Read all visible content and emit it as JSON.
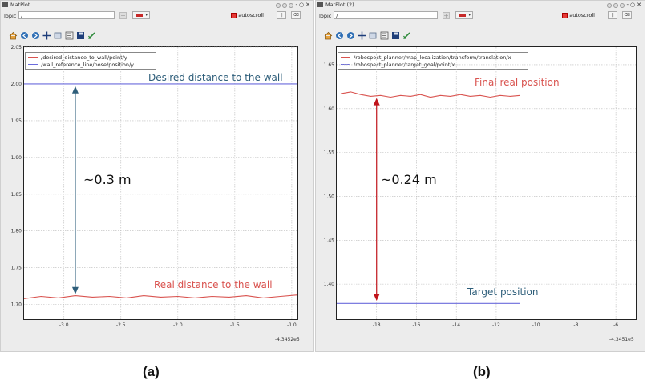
{
  "left": {
    "title": "MatPlot",
    "topic_label": "Topic",
    "topic_value": "/",
    "autoscroll_label": "autoscroll",
    "legend": [
      "/desired_distance_to_wall/point/y",
      "/wall_reference_line/pose/position/y"
    ],
    "annotation_top": "Desired distance to the wall",
    "annotation_measure": "~0.3 m",
    "annotation_bottom": "Real distance to the wall",
    "offset_label": "-4.3452e5",
    "caption": "(a)"
  },
  "right": {
    "title": "MatPlot (2)",
    "topic_label": "Topic",
    "topic_value": "/",
    "autoscroll_label": "autoscroll",
    "legend": [
      "/robospect_planner/map_localization/transform/translation/x",
      "/robospect_planner/target_goal/point/x"
    ],
    "annotation_top": "Final real position",
    "annotation_measure": "~0.24 m",
    "annotation_bottom": "Target position",
    "offset_label": "-4.3451e5",
    "caption": "(b)"
  },
  "colors": {
    "red": "#d9534f",
    "blue": "#6b6bdc",
    "arrow_blue": "#2e5e7a",
    "arrow_red": "#c0141b"
  },
  "chart_data": [
    {
      "type": "line",
      "x_ticks": [
        "-3.0",
        "-2.5",
        "-2.0",
        "-1.5",
        "-1.0"
      ],
      "y_ticks": [
        "2.05",
        "2.00",
        "1.95",
        "1.90",
        "1.85",
        "1.80",
        "1.75",
        "1.70"
      ],
      "xlim": [
        -3.35,
        -0.95
      ],
      "ylim": [
        1.68,
        2.05
      ],
      "series": [
        {
          "name": "/desired_distance_to_wall/point/y",
          "color": "#d9534f",
          "x": [
            -3.35,
            -3.2,
            -3.05,
            -2.9,
            -2.75,
            -2.6,
            -2.45,
            -2.3,
            -2.15,
            -2.0,
            -1.85,
            -1.7,
            -1.55,
            -1.4,
            -1.25,
            -1.1,
            -0.95
          ],
          "y": [
            1.708,
            1.711,
            1.709,
            1.712,
            1.71,
            1.711,
            1.709,
            1.712,
            1.71,
            1.711,
            1.709,
            1.711,
            1.71,
            1.712,
            1.709,
            1.711,
            1.713
          ]
        },
        {
          "name": "/wall_reference_line/pose/position/y",
          "color": "#6b6bdc",
          "x": [
            -3.35,
            -0.95
          ],
          "y": [
            2.0,
            2.0
          ]
        }
      ]
    },
    {
      "type": "line",
      "x_ticks": [
        "-18",
        "-16",
        "-14",
        "-12",
        "-10",
        "-8",
        "-6"
      ],
      "y_ticks": [
        "1.65",
        "1.60",
        "1.55",
        "1.50",
        "1.45",
        "1.40"
      ],
      "xlim": [
        -20,
        -5
      ],
      "ylim": [
        1.36,
        1.67
      ],
      "series": [
        {
          "name": "/robospect_planner/map_localization/transform/translation/x",
          "color": "#d9534f",
          "x": [
            -19.8,
            -19.3,
            -18.8,
            -18.3,
            -17.8,
            -17.3,
            -16.8,
            -16.3,
            -15.8,
            -15.3,
            -14.8,
            -14.3,
            -13.8,
            -13.3,
            -12.8,
            -12.3,
            -11.8,
            -11.3,
            -10.8
          ],
          "y": [
            1.617,
            1.619,
            1.616,
            1.614,
            1.615,
            1.613,
            1.615,
            1.614,
            1.616,
            1.613,
            1.615,
            1.614,
            1.616,
            1.614,
            1.615,
            1.613,
            1.615,
            1.614,
            1.615
          ]
        },
        {
          "name": "/robospect_planner/target_goal/point/x",
          "color": "#6b6bdc",
          "x": [
            -20,
            -10.8
          ],
          "y": [
            1.378,
            1.378
          ]
        }
      ]
    }
  ]
}
